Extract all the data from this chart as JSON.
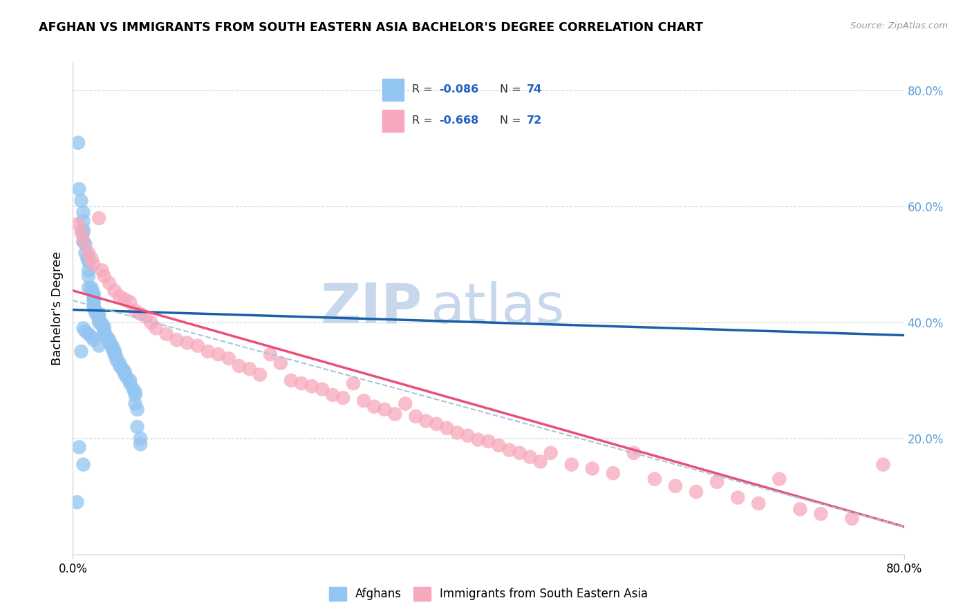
{
  "title": "AFGHAN VS IMMIGRANTS FROM SOUTH EASTERN ASIA BACHELOR'S DEGREE CORRELATION CHART",
  "source": "Source: ZipAtlas.com",
  "ylabel": "Bachelor's Degree",
  "right_yticks": [
    "80.0%",
    "60.0%",
    "40.0%",
    "20.0%"
  ],
  "right_ytick_vals": [
    0.8,
    0.6,
    0.4,
    0.2
  ],
  "xmin": 0.0,
  "xmax": 0.8,
  "ymin": 0.0,
  "ymax": 0.85,
  "legend_r1": "R = -0.086",
  "legend_n1": "N = 74",
  "legend_r2": "R = -0.668",
  "legend_n2": "N = 72",
  "color_blue": "#92C5F0",
  "color_pink": "#F7A8BC",
  "line_color_blue": "#1A5FA8",
  "line_color_pink": "#E8507A",
  "line_color_dashed": "#A8C4DC",
  "bg_color": "#FFFFFF",
  "grid_color": "#CCCCCC",
  "watermark_color": "#C8D8EC",
  "blue_line_x": [
    0.0,
    0.8
  ],
  "blue_line_y": [
    0.422,
    0.378
  ],
  "pink_line_x": [
    0.0,
    0.8
  ],
  "pink_line_y": [
    0.455,
    0.048
  ],
  "dash_line_x": [
    0.0,
    0.8
  ],
  "dash_line_y": [
    0.438,
    0.048
  ],
  "afghans_x": [
    0.005,
    0.006,
    0.008,
    0.01,
    0.01,
    0.01,
    0.01,
    0.01,
    0.01,
    0.012,
    0.012,
    0.014,
    0.015,
    0.015,
    0.015,
    0.015,
    0.018,
    0.018,
    0.02,
    0.02,
    0.02,
    0.02,
    0.02,
    0.02,
    0.022,
    0.022,
    0.025,
    0.025,
    0.025,
    0.025,
    0.028,
    0.028,
    0.03,
    0.03,
    0.03,
    0.03,
    0.032,
    0.032,
    0.035,
    0.035,
    0.035,
    0.038,
    0.038,
    0.04,
    0.04,
    0.04,
    0.042,
    0.042,
    0.045,
    0.045,
    0.048,
    0.048,
    0.05,
    0.05,
    0.052,
    0.055,
    0.055,
    0.058,
    0.06,
    0.06,
    0.06,
    0.062,
    0.062,
    0.065,
    0.065,
    0.01,
    0.012,
    0.015,
    0.018,
    0.02,
    0.025,
    0.008,
    0.006,
    0.004
  ],
  "afghans_y": [
    0.71,
    0.63,
    0.61,
    0.59,
    0.575,
    0.56,
    0.555,
    0.54,
    0.155,
    0.535,
    0.52,
    0.51,
    0.505,
    0.49,
    0.48,
    0.46,
    0.46,
    0.455,
    0.45,
    0.445,
    0.44,
    0.435,
    0.43,
    0.425,
    0.42,
    0.415,
    0.415,
    0.41,
    0.405,
    0.4,
    0.398,
    0.395,
    0.392,
    0.39,
    0.385,
    0.38,
    0.378,
    0.375,
    0.37,
    0.368,
    0.365,
    0.36,
    0.355,
    0.352,
    0.348,
    0.345,
    0.34,
    0.335,
    0.33,
    0.325,
    0.32,
    0.318,
    0.315,
    0.31,
    0.305,
    0.3,
    0.295,
    0.285,
    0.28,
    0.275,
    0.26,
    0.25,
    0.22,
    0.2,
    0.19,
    0.39,
    0.385,
    0.38,
    0.375,
    0.37,
    0.36,
    0.35,
    0.185,
    0.09
  ],
  "sea_x": [
    0.005,
    0.008,
    0.01,
    0.015,
    0.018,
    0.02,
    0.025,
    0.028,
    0.03,
    0.035,
    0.04,
    0.045,
    0.05,
    0.055,
    0.06,
    0.065,
    0.07,
    0.075,
    0.08,
    0.09,
    0.1,
    0.11,
    0.12,
    0.13,
    0.14,
    0.15,
    0.16,
    0.17,
    0.18,
    0.19,
    0.2,
    0.21,
    0.22,
    0.23,
    0.24,
    0.25,
    0.26,
    0.27,
    0.28,
    0.29,
    0.3,
    0.31,
    0.32,
    0.33,
    0.34,
    0.35,
    0.36,
    0.37,
    0.38,
    0.39,
    0.4,
    0.41,
    0.42,
    0.43,
    0.44,
    0.45,
    0.46,
    0.48,
    0.5,
    0.52,
    0.54,
    0.56,
    0.58,
    0.6,
    0.62,
    0.64,
    0.66,
    0.68,
    0.7,
    0.72,
    0.75,
    0.78
  ],
  "sea_y": [
    0.57,
    0.555,
    0.54,
    0.52,
    0.51,
    0.5,
    0.58,
    0.49,
    0.48,
    0.468,
    0.455,
    0.445,
    0.44,
    0.435,
    0.42,
    0.415,
    0.41,
    0.4,
    0.39,
    0.38,
    0.37,
    0.365,
    0.36,
    0.35,
    0.345,
    0.338,
    0.325,
    0.32,
    0.31,
    0.345,
    0.33,
    0.3,
    0.295,
    0.29,
    0.285,
    0.275,
    0.27,
    0.295,
    0.265,
    0.255,
    0.25,
    0.242,
    0.26,
    0.238,
    0.23,
    0.225,
    0.218,
    0.21,
    0.205,
    0.198,
    0.195,
    0.188,
    0.18,
    0.175,
    0.168,
    0.16,
    0.175,
    0.155,
    0.148,
    0.14,
    0.175,
    0.13,
    0.118,
    0.108,
    0.125,
    0.098,
    0.088,
    0.13,
    0.078,
    0.07,
    0.062,
    0.155
  ]
}
